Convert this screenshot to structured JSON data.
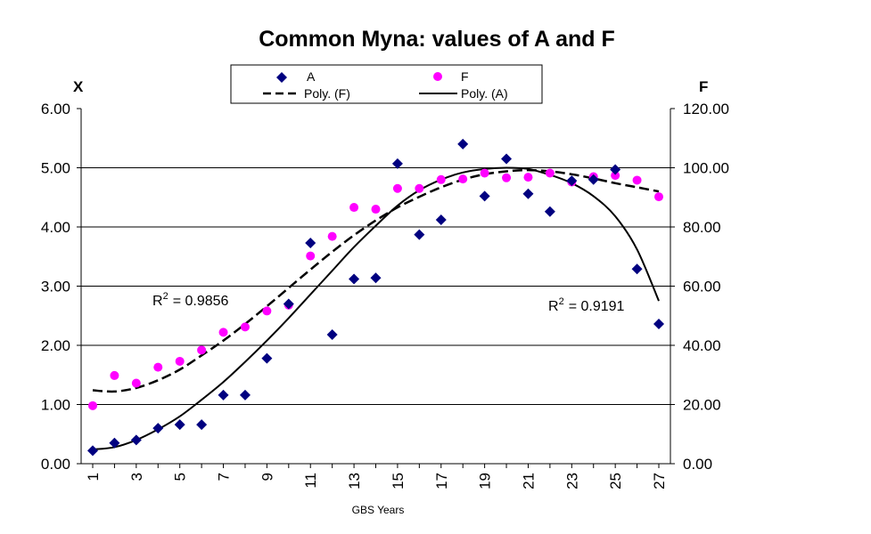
{
  "chart_data": {
    "type": "scatter",
    "title": "Common Myna: values of A and F",
    "xlabel": "GBS Years",
    "ylabel_left": "X",
    "ylabel_right": "F",
    "x": [
      1,
      2,
      3,
      4,
      5,
      6,
      7,
      8,
      9,
      10,
      11,
      12,
      13,
      14,
      15,
      16,
      17,
      18,
      19,
      20,
      21,
      22,
      23,
      24,
      25,
      26,
      27
    ],
    "x_tick_labels": [
      "1",
      "3",
      "5",
      "7",
      "9",
      "11",
      "13",
      "15",
      "17",
      "19",
      "21",
      "23",
      "25",
      "27"
    ],
    "x_tick_values": [
      1,
      3,
      5,
      7,
      9,
      11,
      13,
      15,
      17,
      19,
      21,
      23,
      25,
      27
    ],
    "ylim_left": [
      0,
      6
    ],
    "ylim_right": [
      0,
      120
    ],
    "y_left_ticks": [
      0,
      1,
      2,
      3,
      4,
      5,
      6
    ],
    "y_left_tick_labels": [
      "0.00",
      "1.00",
      "2.00",
      "3.00",
      "4.00",
      "5.00",
      "6.00"
    ],
    "y_right_ticks": [
      0,
      20,
      40,
      60,
      80,
      100,
      120
    ],
    "y_right_tick_labels": [
      "0.00",
      "20.00",
      "40.00",
      "60.00",
      "80.00",
      "100.00",
      "120.00"
    ],
    "series": [
      {
        "name": "A",
        "axis": "left",
        "marker": "diamond",
        "color": "#000080",
        "values": [
          0.22,
          0.35,
          0.4,
          0.6,
          0.66,
          0.66,
          1.16,
          1.16,
          1.78,
          2.7,
          3.73,
          2.18,
          3.12,
          3.14,
          5.07,
          3.87,
          4.12,
          5.4,
          4.52,
          5.15,
          4.56,
          4.26,
          4.78,
          4.8,
          4.97,
          3.29,
          2.36
        ]
      },
      {
        "name": "F",
        "axis": "right",
        "marker": "circle",
        "color": "#ff00ff",
        "values": [
          19.6,
          29.8,
          27.2,
          32.6,
          34.6,
          38.4,
          44.4,
          46.2,
          51.6,
          53.6,
          70.2,
          76.8,
          86.6,
          86.0,
          93.0,
          93.0,
          96.0,
          96.2,
          98.2,
          96.6,
          96.8,
          98.2,
          95.2,
          97.0,
          97.4,
          95.8,
          90.2
        ]
      }
    ],
    "trendlines": [
      {
        "name": "Poly. (F)",
        "style": "dashed",
        "axis": "right",
        "x": [
          1,
          2,
          3,
          4,
          5,
          6,
          7,
          8,
          9,
          10,
          11,
          12,
          13,
          14,
          15,
          16,
          17,
          18,
          19,
          20,
          21,
          22,
          23,
          24,
          25,
          26,
          27
        ],
        "values": [
          24.8,
          24.4,
          25.6,
          28.2,
          31.8,
          36.6,
          41.6,
          47.2,
          53.2,
          59.4,
          65.6,
          71.6,
          77.2,
          82.2,
          86.6,
          90.2,
          93.4,
          96.0,
          97.8,
          98.8,
          99.2,
          98.8,
          97.8,
          96.4,
          94.8,
          93.4,
          92.0
        ]
      },
      {
        "name": "Poly. (A)",
        "style": "solid",
        "axis": "left",
        "x": [
          1,
          2,
          3,
          4,
          5,
          6,
          7,
          8,
          9,
          10,
          11,
          12,
          13,
          14,
          15,
          16,
          17,
          18,
          19,
          20,
          21,
          22,
          23,
          24,
          25,
          26,
          27
        ],
        "values": [
          0.24,
          0.28,
          0.4,
          0.58,
          0.8,
          1.08,
          1.38,
          1.72,
          2.08,
          2.46,
          2.86,
          3.26,
          3.66,
          4.02,
          4.36,
          4.62,
          4.8,
          4.92,
          4.98,
          5.0,
          4.98,
          4.88,
          4.74,
          4.52,
          4.18,
          3.62,
          2.75
        ]
      }
    ],
    "legend": {
      "position": "top-center",
      "items": [
        "A",
        "F",
        "Poly. (F)",
        "Poly. (A)"
      ]
    },
    "annotations": [
      {
        "id": "r2_f",
        "text": "= 0.9856",
        "prefix": "R",
        "sup": "2"
      },
      {
        "id": "r2_a",
        "text": "= 0.9191",
        "prefix": "R",
        "sup": "2"
      }
    ],
    "grid": true
  }
}
